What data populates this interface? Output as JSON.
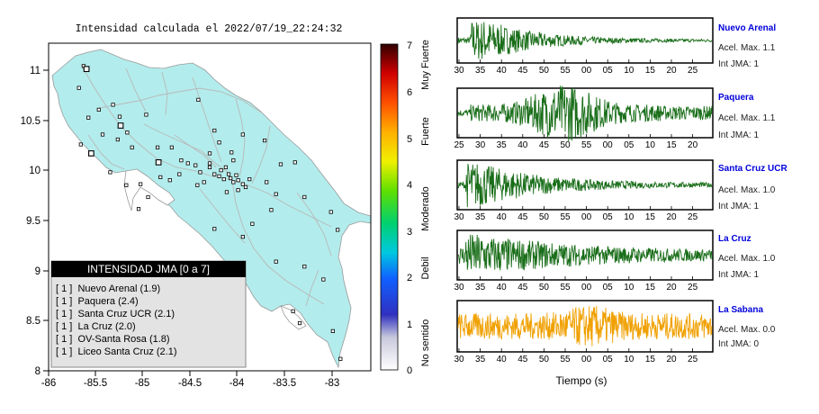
{
  "map": {
    "title": "Intensidad calculada el 2022/07/19_22:24:32",
    "x_ticks": [
      "-86",
      "-85.5",
      "-85",
      "-84.5",
      "-84",
      "-83.5",
      "-83"
    ],
    "y_ticks": [
      "8",
      "8.5",
      "9",
      "9.5",
      "10",
      "10.5",
      "11"
    ],
    "colors": {
      "land": "#b3ecec",
      "sea": "#ffffff",
      "roads": "#b8b8b8",
      "border": "#9a9a9a"
    }
  },
  "legend": {
    "header": "INTENSIDAD JMA [0 a 7]",
    "items": [
      "[ 1 ]  Nuevo Arenal (1.9)",
      "[ 1 ]  Paquera (2.4)",
      "[ 1 ]  Santa Cruz UCR (2.1)",
      "[ 1 ]  La Cruz (2.0)",
      "[ 1 ]  OV-Santa Rosa (1.8)",
      "[ 1 ]  Liceo Santa Cruz (2.1)"
    ]
  },
  "colorbar": {
    "ticks": [
      "0",
      "1",
      "2",
      "3",
      "4",
      "5",
      "6",
      "7"
    ],
    "labels": [
      "No sentido",
      "Debil",
      "Moderado",
      "Fuerte",
      "Muy Fuerte"
    ]
  },
  "traces": [
    {
      "name": "Nuevo Arenal",
      "acel": "Acel. Max. 1.1",
      "int": "Int JMA: 1",
      "color": "#1a6e1a",
      "ticks": [
        "30",
        "35",
        "40",
        "45",
        "50",
        "55",
        "00",
        "05",
        "10",
        "15",
        "20",
        "25"
      ]
    },
    {
      "name": "Paquera",
      "acel": "Acel. Max. 1.1",
      "int": "Int JMA: 1",
      "color": "#1a6e1a",
      "ticks": [
        "25",
        "30",
        "35",
        "40",
        "45",
        "50",
        "55",
        "00",
        "05",
        "10",
        "15",
        "20"
      ]
    },
    {
      "name": "Santa Cruz UCR",
      "acel": "Acel. Max. 1.0",
      "int": "Int JMA: 1",
      "color": "#1a6e1a",
      "ticks": [
        "30",
        "35",
        "40",
        "45",
        "50",
        "55",
        "00",
        "05",
        "10",
        "15",
        "20",
        "25"
      ]
    },
    {
      "name": "La Cruz",
      "acel": "Acel. Max. 1.0",
      "int": "Int JMA: 1",
      "color": "#1a6e1a",
      "ticks": [
        "30",
        "35",
        "40",
        "45",
        "50",
        "55",
        "00",
        "05",
        "10",
        "15",
        "20",
        "25"
      ]
    },
    {
      "name": "La Sabana",
      "acel": "Acel. Max. 0.0",
      "int": "Int JMA: 0",
      "color": "#f0a000",
      "ticks": [
        "30",
        "35",
        "40",
        "45",
        "50",
        "55",
        "00",
        "05",
        "10",
        "15",
        "20",
        "25"
      ]
    }
  ],
  "xaxis_label": "Tiempo (s)",
  "chart_data": {
    "type": "scatter",
    "title": "Intensidad calculada el 2022/07/19_22:24:32",
    "xlim": [
      -86,
      -82.6
    ],
    "ylim": [
      8,
      11.3
    ],
    "stations": [
      {
        "x": -85.63,
        "y": 11.07
      },
      {
        "x": -85.68,
        "y": 10.85
      },
      {
        "x": -85.47,
        "y": 10.63
      },
      {
        "x": -85.58,
        "y": 10.55
      },
      {
        "x": -85.32,
        "y": 10.68
      },
      {
        "x": -85.25,
        "y": 10.56
      },
      {
        "x": -85.43,
        "y": 10.38
      },
      {
        "x": -85.66,
        "y": 10.28
      },
      {
        "x": -85.55,
        "y": 10.18
      },
      {
        "x": -85.27,
        "y": 10.33
      },
      {
        "x": -85.17,
        "y": 10.4
      },
      {
        "x": -84.97,
        "y": 10.58
      },
      {
        "x": -85.12,
        "y": 10.25
      },
      {
        "x": -84.85,
        "y": 10.25
      },
      {
        "x": -84.7,
        "y": 10.25
      },
      {
        "x": -84.42,
        "y": 10.73
      },
      {
        "x": -84.25,
        "y": 10.42
      },
      {
        "x": -84.2,
        "y": 10.3
      },
      {
        "x": -84.3,
        "y": 10.19
      },
      {
        "x": -84.07,
        "y": 10.2
      },
      {
        "x": -83.95,
        "y": 10.38
      },
      {
        "x": -83.72,
        "y": 10.32
      },
      {
        "x": -83.55,
        "y": 10.08
      },
      {
        "x": -83.4,
        "y": 10.1
      },
      {
        "x": -84.53,
        "y": 10.09
      },
      {
        "x": -84.45,
        "y": 10.07
      },
      {
        "x": -84.4,
        "y": 10.0
      },
      {
        "x": -84.3,
        "y": 10.05
      },
      {
        "x": -84.25,
        "y": 9.98
      },
      {
        "x": -84.2,
        "y": 9.96
      },
      {
        "x": -84.15,
        "y": 9.93
      },
      {
        "x": -84.1,
        "y": 9.98
      },
      {
        "x": -84.08,
        "y": 9.94
      },
      {
        "x": -84.05,
        "y": 9.9
      },
      {
        "x": -84.02,
        "y": 9.97
      },
      {
        "x": -84.0,
        "y": 9.92
      },
      {
        "x": -83.95,
        "y": 9.88
      },
      {
        "x": -83.92,
        "y": 9.85
      },
      {
        "x": -83.88,
        "y": 9.93
      },
      {
        "x": -84.18,
        "y": 10.02
      },
      {
        "x": -84.13,
        "y": 10.05
      },
      {
        "x": -84.36,
        "y": 9.9
      },
      {
        "x": -84.43,
        "y": 9.87
      },
      {
        "x": -84.62,
        "y": 9.98
      },
      {
        "x": -84.82,
        "y": 9.95
      },
      {
        "x": -84.95,
        "y": 9.75
      },
      {
        "x": -85.05,
        "y": 9.63
      },
      {
        "x": -85.18,
        "y": 9.87
      },
      {
        "x": -85.35,
        "y": 10.0
      },
      {
        "x": -85.03,
        "y": 9.88
      },
      {
        "x": -83.7,
        "y": 9.9
      },
      {
        "x": -83.6,
        "y": 9.78
      },
      {
        "x": -83.3,
        "y": 9.75
      },
      {
        "x": -83.02,
        "y": 9.6
      },
      {
        "x": -83.65,
        "y": 9.62
      },
      {
        "x": -83.85,
        "y": 9.48
      },
      {
        "x": -83.95,
        "y": 9.35
      },
      {
        "x": -83.6,
        "y": 9.1
      },
      {
        "x": -83.3,
        "y": 9.05
      },
      {
        "x": -83.1,
        "y": 8.92
      },
      {
        "x": -82.95,
        "y": 9.42
      },
      {
        "x": -83.42,
        "y": 8.6
      },
      {
        "x": -83.35,
        "y": 8.48
      },
      {
        "x": -83.0,
        "y": 8.4
      },
      {
        "x": -82.92,
        "y": 8.12
      },
      {
        "x": -84.25,
        "y": 9.43
      },
      {
        "x": -84.12,
        "y": 9.8
      },
      {
        "x": -84.0,
        "y": 9.82
      },
      {
        "x": -84.3,
        "y": 10.09
      },
      {
        "x": -84.6,
        "y": 10.12
      },
      {
        "x": -84.72,
        "y": 9.92
      },
      {
        "x": -84.05,
        "y": 10.12
      }
    ],
    "highlighted": [
      {
        "x": -85.55,
        "y": 10.19
      },
      {
        "x": -85.24,
        "y": 10.47
      },
      {
        "x": -85.6,
        "y": 11.04
      },
      {
        "x": -84.84,
        "y": 10.1
      }
    ]
  }
}
